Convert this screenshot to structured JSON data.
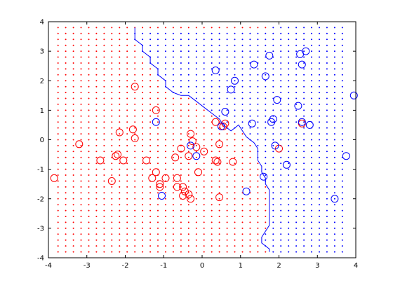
{
  "chart_data": {
    "type": "scatter",
    "title": "",
    "xlabel": "",
    "ylabel": "",
    "xlim": [
      -4,
      4
    ],
    "ylim": [
      -4,
      4
    ],
    "xticks": [
      "-4",
      "-3",
      "-2",
      "-1",
      "0",
      "1",
      "2",
      "3",
      "4"
    ],
    "yticks": [
      "-4",
      "-3",
      "-2",
      "-1",
      "0",
      "1",
      "2",
      "3",
      "4"
    ],
    "grid": false,
    "legend": null,
    "background_grid": {
      "marker": "dot",
      "x_start": -3.75,
      "x_end": 3.75,
      "x_step": 0.2,
      "y_start": -3.8,
      "y_end": 3.8,
      "y_step": 0.2
    },
    "decision_boundary": {
      "x": [
        -1.75,
        -1.75,
        -1.55,
        -1.55,
        -1.35,
        -1.35,
        -1.15,
        -1.15,
        -0.95,
        -0.95,
        -0.75,
        -0.55,
        -0.35,
        -0.15,
        0.05,
        0.25,
        0.45,
        0.55,
        0.65,
        0.75,
        0.95,
        1.05,
        1.15,
        1.35,
        1.45,
        1.45,
        1.55,
        1.55,
        1.65,
        1.65,
        1.75,
        1.75,
        1.65,
        1.55,
        1.55,
        1.65,
        1.75,
        1.75
      ],
      "y": [
        3.8,
        3.4,
        3.2,
        3.0,
        2.8,
        2.6,
        2.4,
        2.2,
        2.0,
        1.8,
        1.6,
        1.5,
        1.5,
        1.3,
        1.1,
        0.9,
        0.7,
        0.5,
        0.4,
        0.3,
        0.5,
        0.3,
        0.1,
        -0.1,
        -0.3,
        -0.7,
        -0.9,
        -1.1,
        -1.3,
        -1.5,
        -1.7,
        -2.9,
        -3.1,
        -3.3,
        -3.5,
        -3.6,
        -3.7,
        -3.8
      ]
    },
    "series": [
      {
        "color": "#ff0000",
        "marker": "circle",
        "x": [
          -3.85,
          -3.2,
          -2.65,
          -2.35,
          -2.25,
          -2.2,
          -2.15,
          -2.05,
          -1.8,
          -1.75,
          -1.75,
          -1.45,
          -1.3,
          -1.2,
          -1.2,
          -1.1,
          -1.1,
          -0.95,
          -0.7,
          -0.65,
          -0.65,
          -0.5,
          -0.5,
          -0.45,
          -0.35,
          -0.3,
          -0.3,
          -0.25,
          -0.15,
          -0.1,
          0.05,
          0.35,
          0.35,
          0.4,
          0.45,
          0.55,
          0.6,
          0.8,
          2.0,
          2.6,
          -0.55,
          0.45,
          -0.35
        ],
        "y": [
          -1.3,
          -0.15,
          -0.7,
          -1.4,
          -0.55,
          -0.5,
          0.25,
          -0.7,
          0.35,
          0.05,
          1.8,
          -0.7,
          -1.3,
          1.0,
          -1.1,
          -1.5,
          -1.6,
          -1.3,
          -0.6,
          -1.6,
          -1.3,
          -1.9,
          -1.6,
          -1.75,
          -0.55,
          -2.0,
          0.2,
          -0.05,
          -0.25,
          -1.1,
          -0.4,
          -0.7,
          0.6,
          -0.75,
          -1.95,
          0.45,
          0.55,
          -0.75,
          -0.3,
          0.55,
          -0.3,
          -0.15,
          -1.85
        ]
      },
      {
        "color": "#0000ff",
        "marker": "circle",
        "x": [
          -1.2,
          -1.05,
          -0.3,
          -0.15,
          0.35,
          0.5,
          0.6,
          0.75,
          0.85,
          1.15,
          1.3,
          1.35,
          1.6,
          1.65,
          1.75,
          1.8,
          1.85,
          1.9,
          1.95,
          2.2,
          2.5,
          2.55,
          2.6,
          2.6,
          2.7,
          2.8,
          3.45,
          3.75,
          3.95
        ],
        "y": [
          0.6,
          -1.9,
          -0.2,
          -0.55,
          2.35,
          0.45,
          0.95,
          1.7,
          2.0,
          -1.75,
          0.55,
          2.55,
          -1.25,
          2.15,
          2.85,
          0.6,
          0.7,
          -0.2,
          1.35,
          -0.85,
          1.15,
          2.9,
          2.55,
          0.6,
          3.0,
          0.5,
          -2.0,
          -0.55,
          1.5
        ]
      }
    ]
  }
}
